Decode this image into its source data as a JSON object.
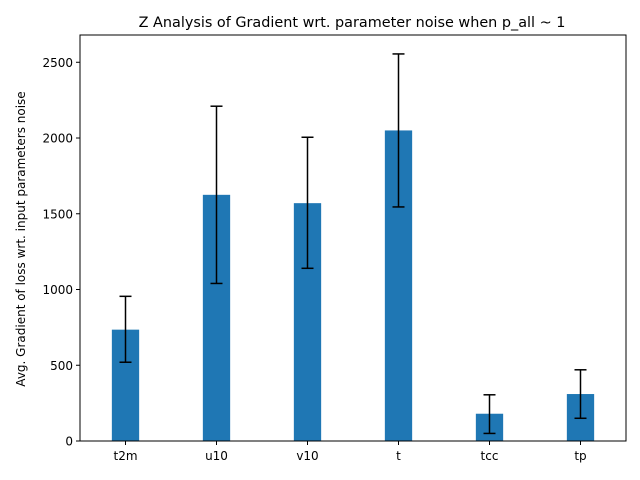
{
  "chart_data": {
    "type": "bar",
    "title": "Z Analysis of Gradient wrt. parameter noise when p_all ~ 1",
    "xlabel": "",
    "ylabel": "Avg. Gradient of loss wrt. input parameters noise",
    "categories": [
      "t2m",
      "u10",
      "v10",
      "t",
      "tcc",
      "tp"
    ],
    "values": [
      735,
      1625,
      1570,
      2050,
      180,
      310
    ],
    "error_low": [
      520,
      1040,
      1140,
      1545,
      50,
      150
    ],
    "error_high": [
      955,
      2210,
      2005,
      2555,
      305,
      470
    ],
    "ylim": [
      0,
      2680
    ],
    "yticks": [
      0,
      500,
      1000,
      1500,
      2000,
      2500
    ],
    "grid": false,
    "bar_color": "#1f77b4",
    "errorbar_color": "#000000"
  }
}
